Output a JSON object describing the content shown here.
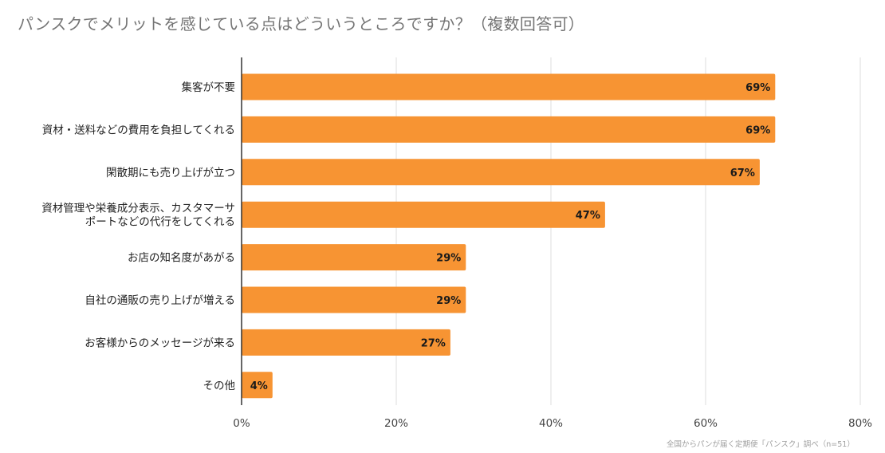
{
  "chart_data": {
    "type": "bar",
    "orientation": "horizontal",
    "title": "パンスクでメリットを感じている点はどういうところですか？（複数回答可）",
    "categories": [
      [
        "集客が不要"
      ],
      [
        "資材・送料などの費用を負担してくれる"
      ],
      [
        "閑散期にも売り上げが立つ"
      ],
      [
        "資材管理や栄養成分表示、カスタマーサ",
        "ポートなどの代行をしてくれる"
      ],
      [
        "お店の知名度があがる"
      ],
      [
        "自社の通販の売り上げが増える"
      ],
      [
        "お客様からのメッセージが来る"
      ],
      [
        "その他"
      ]
    ],
    "values": [
      69,
      69,
      67,
      47,
      29,
      29,
      27,
      4
    ],
    "value_labels": [
      "69%",
      "69%",
      "67%",
      "47%",
      "29%",
      "29%",
      "27%",
      "4%"
    ],
    "xlim": [
      0,
      80
    ],
    "x_ticks": [
      0,
      20,
      40,
      60,
      80
    ],
    "x_tick_labels": [
      "0%",
      "20%",
      "40%",
      "60%",
      "80%"
    ],
    "grid": true,
    "bar_color": "#F79433",
    "grid_color": "#DDDDDD",
    "axis_color": "#333333",
    "source": "全国からパンが届く定期便「パンスク」調べ（n=51）"
  }
}
